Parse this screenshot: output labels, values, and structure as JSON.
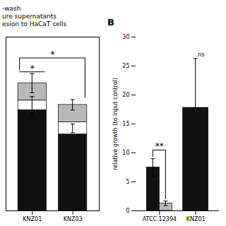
{
  "chart_data": [
    {
      "type": "bar",
      "stacked": true,
      "categories": [
        "KNZ01",
        "KNZ03"
      ],
      "series": [
        {
          "color": "#111111",
          "values": [
            0.58,
            0.44
          ]
        },
        {
          "color": "#ffffff",
          "values": [
            0.055,
            0.07
          ],
          "errors": [
            0.05,
            0.025
          ]
        },
        {
          "color": "#b8b8b8",
          "values": [
            0.1,
            0.1
          ],
          "errors": [
            0.055,
            0.03
          ]
        }
      ],
      "ylim": [
        0,
        1.0
      ],
      "tick_labels": "x",
      "annotations": [
        {
          "text": "-wash"
        },
        {
          "text": "ure supernatants"
        },
        {
          "text": "esion to HaCaT cells"
        },
        {
          "text": "*",
          "y": 0.8,
          "from": "KNZ01",
          "to": "KNZ01"
        },
        {
          "text": "*",
          "y": 0.88,
          "from": "KNZ01",
          "to": "KNZ03"
        }
      ]
    },
    {
      "type": "bar",
      "title": "B",
      "categories": [
        "ATCC 12394",
        "KNZ01"
      ],
      "series": [
        {
          "color": "#111111",
          "values": [
            7.5,
            17.8
          ],
          "errors": [
            1.5,
            [
              0,
              8.5
            ]
          ]
        },
        {
          "color": "#b8b8b8",
          "values": [
            1.3,
            null
          ],
          "errors": [
            0.4,
            null
          ]
        }
      ],
      "ylabel": "relative growth (to input control)",
      "ylim": [
        0,
        30
      ],
      "yticks": [
        0,
        5,
        10,
        15,
        20,
        25,
        30
      ],
      "annotations": [
        {
          "text": "**",
          "y": 10.5,
          "from": "ATCC 12394",
          "to": "ATCC 12394"
        },
        {
          "text": "ns",
          "category": "KNZ01"
        }
      ]
    }
  ]
}
